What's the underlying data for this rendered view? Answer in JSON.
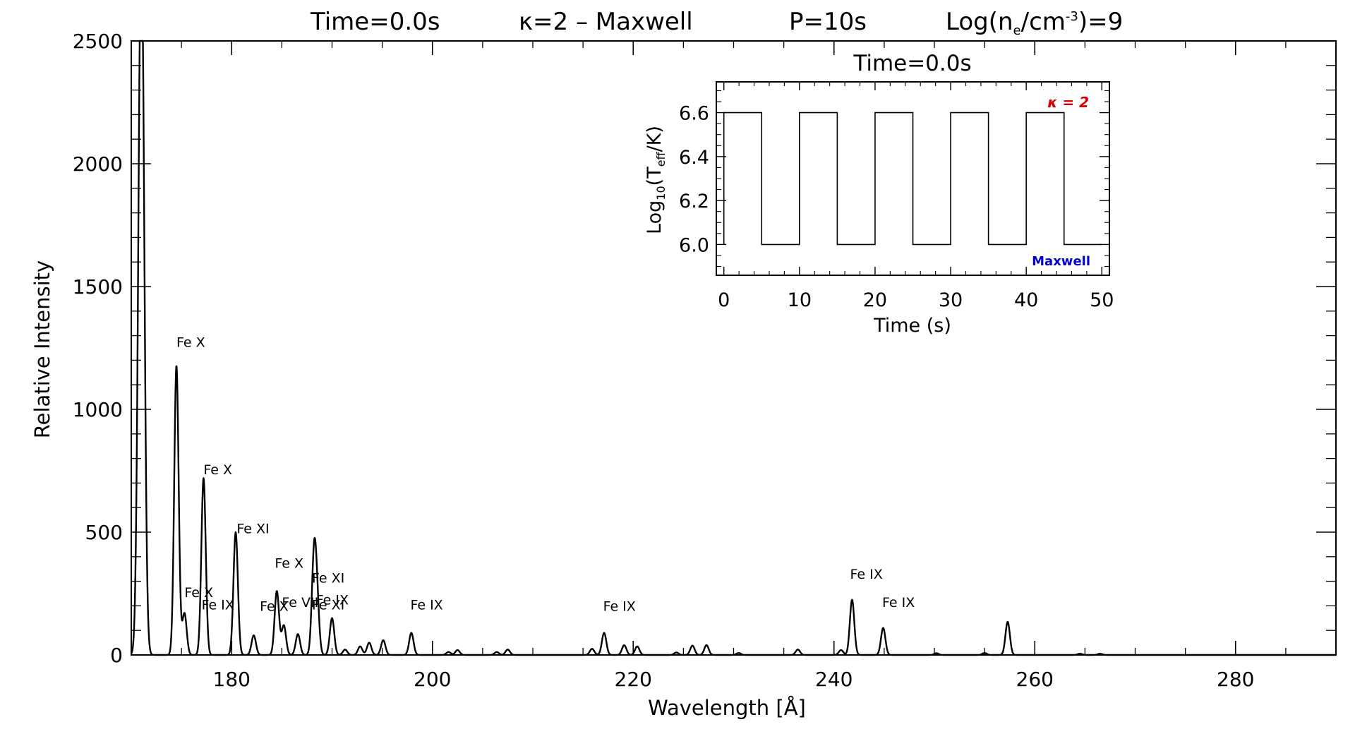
{
  "chart_data": {
    "type": "line",
    "title": {
      "time": "Time=0.0s",
      "model": "κ=2 – Maxwell",
      "period": "P=10s",
      "density_prefix": "Log(n",
      "density_sub": "e",
      "density_mid": "/cm",
      "density_sup": "-3",
      "density_suffix": ")=9"
    },
    "xlabel": "Wavelength [Å]",
    "ylabel": "Relative Intensity",
    "xlim": [
      170,
      290
    ],
    "ylim": [
      0,
      2500
    ],
    "xticks": [
      180,
      200,
      220,
      240,
      260,
      280
    ],
    "yticks": [
      0,
      500,
      1000,
      1500,
      2000,
      2500
    ],
    "peaks": [
      {
        "x": 171.0,
        "y": 3000,
        "w": 0.28
      },
      {
        "x": 174.5,
        "y": 1180,
        "w": 0.22
      },
      {
        "x": 175.3,
        "y": 170,
        "w": 0.22
      },
      {
        "x": 177.2,
        "y": 720,
        "w": 0.22
      },
      {
        "x": 180.4,
        "y": 500,
        "w": 0.22
      },
      {
        "x": 182.2,
        "y": 80,
        "w": 0.22
      },
      {
        "x": 184.5,
        "y": 260,
        "w": 0.22
      },
      {
        "x": 185.2,
        "y": 120,
        "w": 0.22
      },
      {
        "x": 186.6,
        "y": 85,
        "w": 0.22
      },
      {
        "x": 188.2,
        "y": 380,
        "w": 0.22
      },
      {
        "x": 188.5,
        "y": 200,
        "w": 0.22
      },
      {
        "x": 190.0,
        "y": 150,
        "w": 0.22
      },
      {
        "x": 191.3,
        "y": 22,
        "w": 0.22
      },
      {
        "x": 192.8,
        "y": 35,
        "w": 0.22
      },
      {
        "x": 193.7,
        "y": 50,
        "w": 0.22
      },
      {
        "x": 195.1,
        "y": 60,
        "w": 0.22
      },
      {
        "x": 197.9,
        "y": 90,
        "w": 0.22
      },
      {
        "x": 201.6,
        "y": 12,
        "w": 0.22
      },
      {
        "x": 202.5,
        "y": 20,
        "w": 0.22
      },
      {
        "x": 206.4,
        "y": 12,
        "w": 0.22
      },
      {
        "x": 207.5,
        "y": 22,
        "w": 0.22
      },
      {
        "x": 215.9,
        "y": 25,
        "w": 0.22
      },
      {
        "x": 217.1,
        "y": 90,
        "w": 0.22
      },
      {
        "x": 219.1,
        "y": 40,
        "w": 0.22
      },
      {
        "x": 220.4,
        "y": 35,
        "w": 0.22
      },
      {
        "x": 224.3,
        "y": 10,
        "w": 0.22
      },
      {
        "x": 225.9,
        "y": 38,
        "w": 0.22
      },
      {
        "x": 227.3,
        "y": 40,
        "w": 0.22
      },
      {
        "x": 230.5,
        "y": 8,
        "w": 0.22
      },
      {
        "x": 236.4,
        "y": 22,
        "w": 0.22
      },
      {
        "x": 240.7,
        "y": 20,
        "w": 0.22
      },
      {
        "x": 241.8,
        "y": 225,
        "w": 0.22
      },
      {
        "x": 244.9,
        "y": 110,
        "w": 0.22
      },
      {
        "x": 250.2,
        "y": 7,
        "w": 0.22
      },
      {
        "x": 255.0,
        "y": 8,
        "w": 0.22
      },
      {
        "x": 257.3,
        "y": 135,
        "w": 0.22
      },
      {
        "x": 264.5,
        "y": 5,
        "w": 0.22
      },
      {
        "x": 266.5,
        "y": 5,
        "w": 0.22
      }
    ],
    "annotations": [
      {
        "text": "Fe X",
        "x": 174.5,
        "y": 1255
      },
      {
        "text": "Fe X",
        "x": 177.2,
        "y": 735
      },
      {
        "text": "Fe XI",
        "x": 180.5,
        "y": 495
      },
      {
        "text": "Fe X",
        "x": 175.3,
        "y": 235
      },
      {
        "text": "Fe IX",
        "x": 177.0,
        "y": 185
      },
      {
        "text": "Fe X",
        "x": 182.8,
        "y": 180
      },
      {
        "text": "Fe X",
        "x": 184.3,
        "y": 355
      },
      {
        "text": "Fe VII",
        "x": 185.0,
        "y": 195
      },
      {
        "text": "Fe XI",
        "x": 188.0,
        "y": 295
      },
      {
        "text": "Fe IX",
        "x": 188.4,
        "y": 205
      },
      {
        "text": "Fe XI",
        "x": 188.0,
        "y": 185
      },
      {
        "text": "Fe IX",
        "x": 197.8,
        "y": 185
      },
      {
        "text": "Fe IX",
        "x": 217.0,
        "y": 180
      },
      {
        "text": "Fe IX",
        "x": 241.6,
        "y": 310
      },
      {
        "text": "Fe IX",
        "x": 244.8,
        "y": 195
      }
    ],
    "inset": {
      "type": "line",
      "title": "Time=0.0s",
      "xlabel": "Time (s)",
      "ylabel_prefix": "Log",
      "ylabel_sub1": "10",
      "ylabel_mid": "(T",
      "ylabel_sub2": "eff",
      "ylabel_suffix": "/K)",
      "xlim": [
        -1,
        51
      ],
      "ylim": [
        5.86,
        6.74
      ],
      "xticks": [
        0,
        10,
        20,
        30,
        40,
        50
      ],
      "yticks": [
        6.0,
        6.2,
        6.4,
        6.6
      ],
      "ytick_labels": [
        "6.0",
        "6.2",
        "6.4",
        "6.6"
      ],
      "x": [
        0,
        0,
        5,
        5,
        10,
        10,
        15,
        15,
        20,
        20,
        25,
        25,
        30,
        30,
        35,
        35,
        40,
        40,
        45,
        45,
        50
      ],
      "y": [
        6.0,
        6.6,
        6.6,
        6.0,
        6.0,
        6.6,
        6.6,
        6.0,
        6.0,
        6.6,
        6.6,
        6.0,
        6.0,
        6.6,
        6.6,
        6.0,
        6.0,
        6.6,
        6.6,
        6.0,
        6.0
      ],
      "legend_top": "κ = 2",
      "legend_bottom": "Maxwell",
      "legend_top_color": "#dd0000",
      "legend_bottom_color": "#0000cc"
    }
  }
}
